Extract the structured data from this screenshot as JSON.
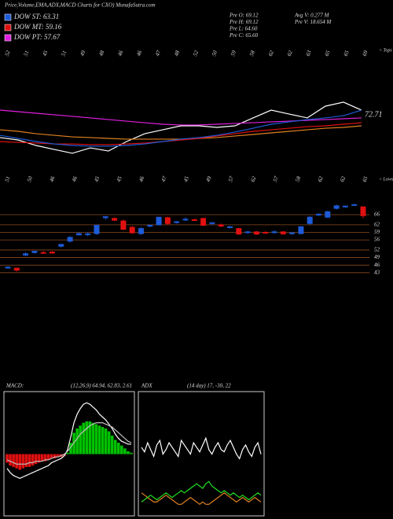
{
  "header": {
    "title": "Price,Volume,EMA,ADX,MACD Charts for CXO) MunafaSutra.com",
    "legend": [
      {
        "label": "DOW ST: 63.31",
        "color": "#1e5bd8"
      },
      {
        "label": "DOW MT: 59.16",
        "color": "#e01010"
      },
      {
        "label": "DOW PT: 57.67",
        "color": "#e020e0"
      }
    ],
    "stats": [
      "Pre O: 69.12",
      "Pre H: 69.12",
      "Pre L: 64.60",
      "Pre C: 65.60",
      "Avg V: 0.277 M",
      "Pre V: 18.654 M"
    ]
  },
  "chart_data": [
    {
      "type": "line",
      "last_label": 72.71,
      "ylim": [
        40,
        90
      ],
      "series": [
        {
          "color": "#ffffff",
          "values": [
            56.7,
            55,
            51.1,
            48.3,
            45.6,
            49.4,
            47.2,
            53.9,
            59.4,
            62.2,
            65,
            65,
            63.9,
            65,
            70.6,
            76.1,
            73.3,
            70.6,
            78.9,
            81.7,
            76.1
          ]
        },
        {
          "color": "#e08020",
          "values": [
            62.2,
            61.1,
            59.4,
            58.3,
            57.2,
            56.7,
            56.1,
            55.6,
            55.6,
            55.6,
            55.6,
            56.1,
            56.7,
            57.8,
            58.9,
            60,
            61.1,
            62.2,
            63.3,
            63.9,
            65
          ]
        },
        {
          "color": "#e01010",
          "values": [
            53.9,
            53.3,
            52.8,
            52.2,
            52.2,
            51.7,
            51.7,
            52.2,
            52.8,
            53.9,
            55,
            56.1,
            57.8,
            59.4,
            61.1,
            62.2,
            63.3,
            64.4,
            65,
            66.1,
            67.2
          ]
        },
        {
          "color": "#e020e0",
          "values": [
            76.1,
            75,
            73.9,
            72.8,
            71.7,
            70.6,
            69.4,
            68.3,
            67.2,
            66.1,
            65.6,
            65.6,
            66.1,
            66.7,
            67.2,
            67.8,
            68.3,
            68.9,
            69.4,
            70,
            70.6
          ]
        },
        {
          "color": "#1e5bd8",
          "values": [
            58.3,
            56.1,
            53.9,
            52.2,
            51.1,
            50.6,
            50.6,
            51.1,
            52.2,
            53.9,
            55.6,
            56.7,
            58.3,
            60.6,
            63.3,
            66.1,
            67.8,
            69.4,
            70.6,
            72.2,
            76.1
          ]
        }
      ]
    },
    {
      "type": "candlestick",
      "ylim": [
        42,
        71
      ],
      "yticks": [
        66,
        62,
        59,
        56,
        52,
        49,
        46,
        43
      ],
      "grid": true,
      "up_color": "#1e5bd8",
      "down_color": "#e01010",
      "tops_label": "< Tops",
      "lows_label": "< Lows",
      "tops": [
        "52",
        "51",
        "45",
        "51",
        "49",
        "48",
        "46",
        "46",
        "47",
        "48",
        "52",
        "50",
        "59",
        "58",
        "62",
        "62",
        "63",
        "65",
        "65",
        "69"
      ],
      "lows": [
        "51",
        "50",
        "46",
        "46",
        "45",
        "45",
        "46",
        "47",
        "45",
        "49",
        "57",
        "62",
        "57",
        "58",
        "62",
        "62",
        "65"
      ],
      "open": [
        45,
        44.8,
        50,
        51,
        51,
        51.2,
        53.5,
        55.5,
        58,
        58.2,
        58.5,
        64.8,
        64.5,
        63.5,
        61,
        58.5,
        61.5,
        62,
        64.8,
        63,
        64,
        64,
        64.5,
        62.5,
        62,
        61,
        60.5,
        59,
        59.2,
        59,
        59,
        59.2,
        58.5,
        58.5,
        62.5,
        66,
        65,
        68.5,
        69.2,
        69.8,
        69.12
      ],
      "high": [
        45.5,
        45,
        51,
        51.5,
        51.5,
        51.5,
        54.5,
        57.5,
        59,
        59,
        62,
        65.5,
        65,
        64,
        61.5,
        61,
        62,
        65.2,
        65.2,
        63.5,
        65,
        64.5,
        64.8,
        63,
        62.5,
        61.5,
        60.8,
        59.5,
        59.5,
        59.5,
        59.8,
        59.5,
        59,
        61.5,
        65.5,
        66.5,
        67.5,
        70,
        69.6,
        70.3,
        69.12
      ],
      "low": [
        44.5,
        43.5,
        49.5,
        50.5,
        50.5,
        50.5,
        53,
        55,
        57.8,
        57.5,
        58,
        64,
        63.5,
        60,
        58.5,
        58,
        61,
        61.8,
        62,
        62.5,
        63.5,
        63.5,
        61.5,
        62,
        61,
        60.5,
        58,
        58.5,
        58,
        58.5,
        58.5,
        58,
        58,
        58.3,
        62,
        65.5,
        64.8,
        68,
        68.8,
        69.5,
        64.6
      ],
      "close": [
        45.2,
        44,
        50.5,
        51.5,
        50.8,
        50.8,
        54.2,
        57,
        58.5,
        58.4,
        61.8,
        65.2,
        63.8,
        60.2,
        58.8,
        60.5,
        61.8,
        65,
        62.5,
        63.2,
        64.2,
        63.8,
        61.8,
        62.8,
        61.5,
        61.2,
        58.3,
        59.2,
        58.3,
        58.8,
        59.2,
        58.4,
        58.8,
        61.2,
        65,
        66.2,
        67.2,
        69.5,
        69.4,
        70,
        65.6
      ]
    },
    {
      "type": "macd",
      "title": "MACD:",
      "subtitle": "(12,26,9) 64.94, 62.83, 2.61",
      "ylim": [
        -4,
        4
      ],
      "up_color": "#00c000",
      "down_color": "#e01010",
      "histogram": [
        -0.6,
        -0.8,
        -0.9,
        -1,
        -1.1,
        -1,
        -0.9,
        -0.9,
        -0.8,
        -0.7,
        -0.6,
        -0.5,
        -0.5,
        -0.4,
        -0.3,
        -0.3,
        -0.2,
        -0.2,
        -0.1,
        0.1,
        0.8,
        1.5,
        1.8,
        2,
        2.2,
        2.3,
        2.3,
        2.2,
        2.1,
        2,
        1.9,
        1.8,
        1.6,
        1.3,
        1,
        0.8,
        0.6,
        0.4,
        0.2,
        0.1
      ],
      "series": [
        {
          "color": "#ffffff",
          "values": [
            -1,
            -1.3,
            -1.5,
            -1.6,
            -1.7,
            -1.6,
            -1.5,
            -1.4,
            -1.3,
            -1.2,
            -1.1,
            -1,
            -0.9,
            -0.8,
            -0.6,
            -0.5,
            -0.4,
            -0.3,
            -0.1,
            0.3,
            1.2,
            2.2,
            2.8,
            3.2,
            3.5,
            3.6,
            3.5,
            3.3,
            3.1,
            2.8,
            2.6,
            2.4,
            2.1,
            1.8,
            1.4,
            1.1,
            0.9,
            0.8,
            0.7,
            0.7
          ]
        },
        {
          "color": "#c0c0c0",
          "values": [
            -0.4,
            -0.5,
            -0.6,
            -0.7,
            -0.7,
            -0.7,
            -0.7,
            -0.6,
            -0.6,
            -0.5,
            -0.5,
            -0.5,
            -0.4,
            -0.4,
            -0.3,
            -0.2,
            -0.2,
            -0.1,
            0,
            0.2,
            0.5,
            0.8,
            1.1,
            1.4,
            1.6,
            1.8,
            2,
            2.1,
            2.2,
            2.2,
            2.2,
            2.1,
            2,
            1.9,
            1.7,
            1.5,
            1.3,
            1.1,
            0.9,
            0.8
          ]
        }
      ]
    },
    {
      "type": "adx",
      "title": "ADX",
      "subtitle": "(14 day) 17, -30, 22",
      "ylim": [
        0,
        50
      ],
      "series": [
        {
          "color": "#ffffff",
          "values": [
            28,
            26,
            30,
            27,
            24,
            29,
            31,
            25,
            27,
            30,
            28,
            26,
            24,
            31,
            29,
            27,
            25,
            30,
            28,
            26,
            29,
            32,
            27,
            25,
            28,
            30,
            27,
            26,
            29,
            31,
            28,
            25,
            23,
            27,
            29,
            26,
            24,
            28,
            30,
            25
          ]
        },
        {
          "color": "#e08020",
          "values": [
            8,
            7,
            6,
            5,
            4,
            4,
            5,
            6,
            7,
            6,
            5,
            4,
            3,
            3,
            4,
            5,
            6,
            5,
            4,
            3,
            4,
            3,
            3,
            4,
            5,
            6,
            7,
            8,
            7,
            6,
            5,
            4,
            5,
            6,
            5,
            4,
            5,
            6,
            5,
            4
          ]
        },
        {
          "color": "#20e020",
          "values": [
            4,
            5,
            6,
            7,
            6,
            5,
            6,
            7,
            8,
            7,
            6,
            7,
            8,
            9,
            8,
            9,
            10,
            11,
            12,
            11,
            10,
            12,
            13,
            11,
            10,
            9,
            8,
            9,
            8,
            7,
            8,
            7,
            6,
            7,
            6,
            5,
            6,
            7,
            8,
            7
          ]
        }
      ]
    }
  ]
}
